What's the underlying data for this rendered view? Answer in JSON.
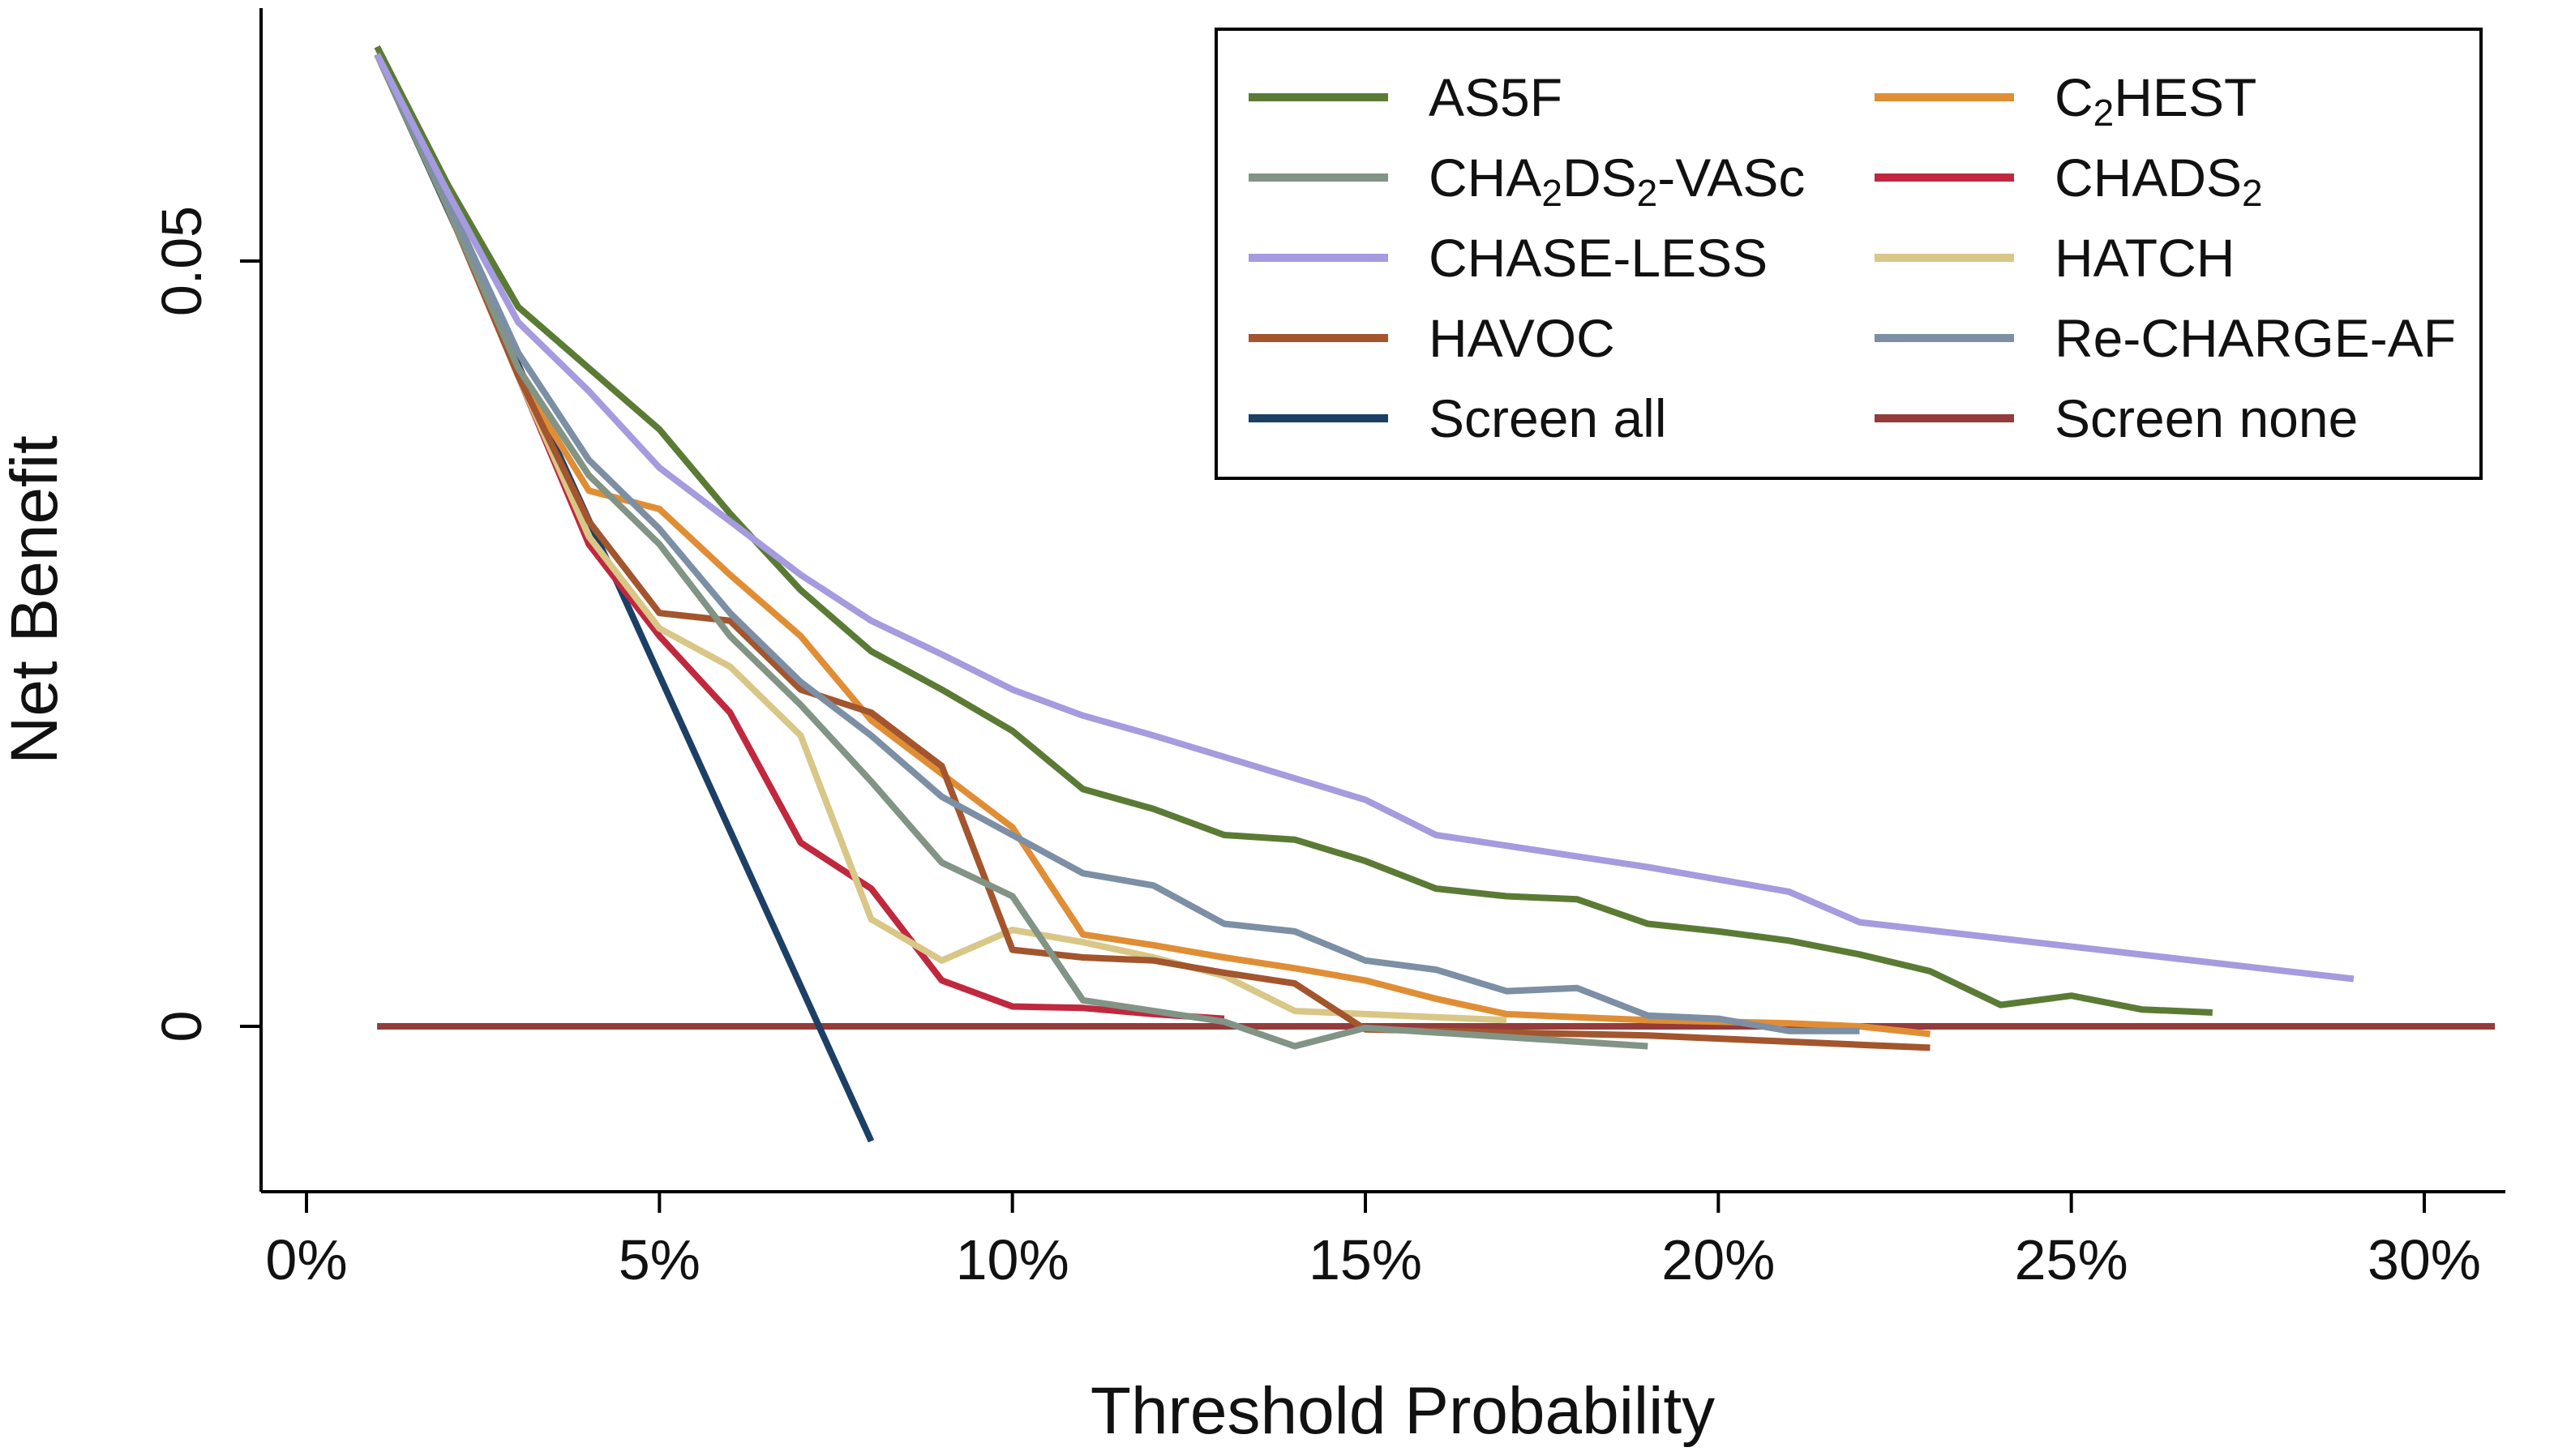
{
  "chart_data": {
    "type": "line",
    "title": "",
    "xlabel": "Threshold Probability",
    "ylabel": "Net Benefit",
    "xlim": [
      -0.007,
      0.31
    ],
    "ylim": [
      -0.0105,
      0.0665
    ],
    "x_ticks": [
      {
        "value": 0.0,
        "label": "0%"
      },
      {
        "value": 0.05,
        "label": "5%"
      },
      {
        "value": 0.1,
        "label": "10%"
      },
      {
        "value": 0.15,
        "label": "15%"
      },
      {
        "value": 0.2,
        "label": "20%"
      },
      {
        "value": 0.25,
        "label": "25%"
      },
      {
        "value": 0.3,
        "label": "30%"
      }
    ],
    "y_ticks": [
      {
        "value": 0.0,
        "label": "0"
      },
      {
        "value": 0.05,
        "label": "0.05"
      }
    ],
    "grid": false,
    "legend_position": "top-right",
    "series": [
      {
        "name": "Screen none",
        "key": "screen-none",
        "color": "#943b3b",
        "draw_order": 0,
        "x": [
          0.01,
          0.31
        ],
        "y": [
          0.0,
          0.0
        ]
      },
      {
        "name": "Screen all",
        "key": "screen-all",
        "color": "#1c3f66",
        "draw_order": 1,
        "x": [
          0.01,
          0.08
        ],
        "y": [
          0.0635,
          -0.0075
        ]
      },
      {
        "name": "CHADS",
        "sub": "2",
        "key": "chads2",
        "color": "#c0283e",
        "draw_order": 2,
        "x": [
          0.01,
          0.02,
          0.03,
          0.04,
          0.05,
          0.06,
          0.07,
          0.08,
          0.09,
          0.1,
          0.11,
          0.12,
          0.13
        ],
        "y": [
          0.0635,
          0.0535,
          0.0425,
          0.0315,
          0.0255,
          0.0205,
          0.012,
          0.009,
          0.003,
          0.0013,
          0.0012,
          0.0008,
          0.0005
        ]
      },
      {
        "name": "HATCH",
        "key": "hatch",
        "color": "#d8c787",
        "draw_order": 3,
        "x": [
          0.01,
          0.02,
          0.03,
          0.04,
          0.05,
          0.06,
          0.07,
          0.08,
          0.09,
          0.1,
          0.11,
          0.12,
          0.13,
          0.14,
          0.15,
          0.16,
          0.17
        ],
        "y": [
          0.0635,
          0.0535,
          0.0425,
          0.032,
          0.026,
          0.0235,
          0.019,
          0.007,
          0.0043,
          0.0063,
          0.0055,
          0.0045,
          0.0033,
          0.001,
          0.0008,
          0.0006,
          0.0004
        ]
      },
      {
        "name": "C",
        "sub": "2",
        "name_tail": "HEST",
        "key": "c2hest",
        "color": "#e08e35",
        "draw_order": 4,
        "x": [
          0.01,
          0.02,
          0.03,
          0.04,
          0.05,
          0.06,
          0.07,
          0.08,
          0.09,
          0.1,
          0.11,
          0.12,
          0.13,
          0.14,
          0.15,
          0.16,
          0.17,
          0.18,
          0.19,
          0.2,
          0.21,
          0.22,
          0.23
        ],
        "y": [
          0.0635,
          0.0535,
          0.0425,
          0.035,
          0.0338,
          0.0295,
          0.0255,
          0.02,
          0.0165,
          0.013,
          0.006,
          0.0053,
          0.0045,
          0.0038,
          0.003,
          0.0018,
          0.0008,
          0.0006,
          0.0004,
          0.0003,
          0.0002,
          0.0,
          -0.0005
        ]
      },
      {
        "name": "HAVOC",
        "key": "havoc",
        "color": "#a3552e",
        "draw_order": 5,
        "x": [
          0.01,
          0.02,
          0.03,
          0.04,
          0.05,
          0.06,
          0.07,
          0.08,
          0.09,
          0.1,
          0.11,
          0.12,
          0.13,
          0.14,
          0.15,
          0.16,
          0.17,
          0.18,
          0.19,
          0.2,
          0.21,
          0.22,
          0.23
        ],
        "y": [
          0.0635,
          0.0535,
          0.0425,
          0.033,
          0.027,
          0.0265,
          0.022,
          0.0205,
          0.017,
          0.005,
          0.0045,
          0.0043,
          0.0035,
          0.0028,
          -0.0002,
          -0.0003,
          -0.0004,
          -0.0005,
          -0.0006,
          -0.0008,
          -0.001,
          -0.0012,
          -0.0014
        ]
      },
      {
        "name": "CHA",
        "sub": "2",
        "name_mid": "DS",
        "sub2": "2",
        "name_tail": "-VASc",
        "key": "cha2ds2-vasc",
        "color": "#829485",
        "draw_order": 6,
        "x": [
          0.01,
          0.02,
          0.03,
          0.04,
          0.05,
          0.06,
          0.07,
          0.08,
          0.09,
          0.1,
          0.11,
          0.12,
          0.13,
          0.14,
          0.15,
          0.16,
          0.17,
          0.18,
          0.19
        ],
        "y": [
          0.0635,
          0.0535,
          0.043,
          0.036,
          0.0315,
          0.0255,
          0.021,
          0.016,
          0.0107,
          0.0085,
          0.0017,
          0.001,
          0.0003,
          -0.0013,
          -0.0001,
          -0.0004,
          -0.0007,
          -0.001,
          -0.0013
        ]
      },
      {
        "name": "Re-CHARGE-AF",
        "key": "re-charge-af",
        "color": "#7c8fa4",
        "draw_order": 7,
        "x": [
          0.01,
          0.02,
          0.03,
          0.04,
          0.05,
          0.06,
          0.07,
          0.08,
          0.09,
          0.1,
          0.11,
          0.12,
          0.13,
          0.14,
          0.15,
          0.16,
          0.17,
          0.18,
          0.19,
          0.2,
          0.21,
          0.22
        ],
        "y": [
          0.0635,
          0.054,
          0.044,
          0.037,
          0.0325,
          0.027,
          0.0225,
          0.019,
          0.015,
          0.0125,
          0.01,
          0.0092,
          0.0067,
          0.0062,
          0.0043,
          0.0037,
          0.0023,
          0.0025,
          0.0007,
          0.0005,
          -0.0003,
          -0.0003
        ]
      },
      {
        "name": "AS5F",
        "key": "as5f",
        "color": "#5b7b35",
        "draw_order": 8,
        "x": [
          0.01,
          0.02,
          0.03,
          0.04,
          0.05,
          0.06,
          0.07,
          0.08,
          0.09,
          0.1,
          0.11,
          0.12,
          0.13,
          0.14,
          0.15,
          0.16,
          0.17,
          0.18,
          0.19,
          0.2,
          0.21,
          0.22,
          0.23,
          0.24,
          0.25,
          0.26,
          0.27
        ],
        "y": [
          0.064,
          0.055,
          0.047,
          0.043,
          0.039,
          0.0335,
          0.0285,
          0.0245,
          0.022,
          0.0193,
          0.0155,
          0.0142,
          0.0125,
          0.0122,
          0.0108,
          0.009,
          0.0085,
          0.0083,
          0.0067,
          0.0062,
          0.0056,
          0.0047,
          0.0036,
          0.0014,
          0.002,
          0.0011,
          0.0009
        ]
      },
      {
        "name": "CHASE-LESS",
        "key": "chase-less",
        "color": "#a59bde",
        "draw_order": 9,
        "x": [
          0.01,
          0.02,
          0.03,
          0.04,
          0.05,
          0.06,
          0.07,
          0.08,
          0.09,
          0.1,
          0.11,
          0.12,
          0.13,
          0.14,
          0.15,
          0.16,
          0.17,
          0.18,
          0.19,
          0.2,
          0.21,
          0.22,
          0.29
        ],
        "y": [
          0.0635,
          0.0545,
          0.046,
          0.0415,
          0.0365,
          0.033,
          0.0295,
          0.0265,
          0.0243,
          0.022,
          0.0203,
          0.019,
          0.0176,
          0.0162,
          0.0148,
          0.0125,
          0.0118,
          0.0111,
          0.0104,
          0.0096,
          0.0088,
          0.0068,
          0.0031
        ]
      }
    ]
  },
  "legend": {
    "items": [
      {
        "key": "as5f",
        "parts": [
          [
            "AS5F",
            ""
          ]
        ],
        "color": "#5b7b35"
      },
      {
        "key": "c2hest",
        "parts": [
          [
            "C",
            ""
          ],
          [
            "2",
            "sub"
          ],
          [
            "HEST",
            ""
          ]
        ],
        "color": "#e08e35"
      },
      {
        "key": "cha2ds2-vasc",
        "parts": [
          [
            "CHA",
            ""
          ],
          [
            "2",
            "sub"
          ],
          [
            "DS",
            ""
          ],
          [
            "2",
            "sub"
          ],
          [
            "-VASc",
            ""
          ]
        ],
        "color": "#829485"
      },
      {
        "key": "chads2",
        "parts": [
          [
            "CHADS",
            ""
          ],
          [
            "2",
            "sub"
          ]
        ],
        "color": "#c0283e"
      },
      {
        "key": "chase-less",
        "parts": [
          [
            "CHASE-LESS",
            ""
          ]
        ],
        "color": "#a59bde"
      },
      {
        "key": "hatch",
        "parts": [
          [
            "HATCH",
            ""
          ]
        ],
        "color": "#d8c787"
      },
      {
        "key": "havoc",
        "parts": [
          [
            "HAVOC",
            ""
          ]
        ],
        "color": "#a3552e"
      },
      {
        "key": "re-charge-af",
        "parts": [
          [
            "Re-CHARGE-AF",
            ""
          ]
        ],
        "color": "#7c8fa4"
      },
      {
        "key": "screen-all",
        "parts": [
          [
            "Screen all",
            ""
          ]
        ],
        "color": "#1c3f66"
      },
      {
        "key": "screen-none",
        "parts": [
          [
            "Screen none",
            ""
          ]
        ],
        "color": "#943b3b"
      }
    ]
  }
}
